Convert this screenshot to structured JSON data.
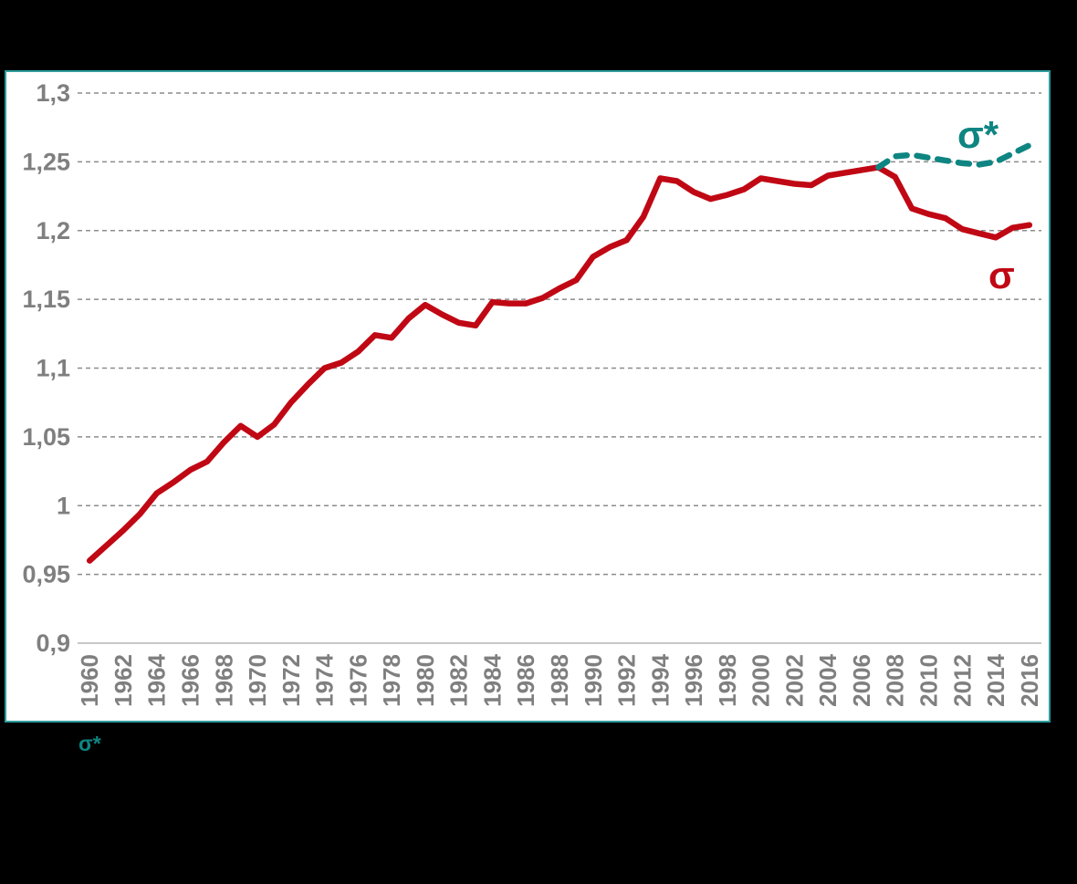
{
  "panel": {
    "background": "#ffffff",
    "border_color": "#2e9d9c"
  },
  "footnote": {
    "text": "σ*",
    "color": "#0f8582"
  },
  "colors": {
    "sigma_line": "#c00814",
    "sigma_star_line": "#0f8582",
    "tick_label_gray": "#7f7f7f",
    "gridline_gray": "#8c8c8c",
    "baseline_gray": "#bfbfbf"
  },
  "chart_data": {
    "type": "line",
    "title": "",
    "xlabel": "",
    "ylabel": "",
    "grid": "horizontal dashed gridlines, solid baseline at 0.9",
    "legend": "inline series labels at line ends",
    "ylim": [
      0.9,
      1.3
    ],
    "yticks": [
      {
        "value": 1.3,
        "label": "1,3"
      },
      {
        "value": 1.25,
        "label": "1,25"
      },
      {
        "value": 1.2,
        "label": "1,2"
      },
      {
        "value": 1.15,
        "label": "1,15"
      },
      {
        "value": 1.1,
        "label": "1,1"
      },
      {
        "value": 1.05,
        "label": "1,05"
      },
      {
        "value": 1.0,
        "label": "1"
      },
      {
        "value": 0.95,
        "label": "0,95"
      },
      {
        "value": 0.9,
        "label": "0,9"
      }
    ],
    "x": [
      1960,
      1961,
      1962,
      1963,
      1964,
      1965,
      1966,
      1967,
      1968,
      1969,
      1970,
      1971,
      1972,
      1973,
      1974,
      1975,
      1976,
      1977,
      1978,
      1979,
      1980,
      1981,
      1982,
      1983,
      1984,
      1985,
      1986,
      1987,
      1988,
      1989,
      1990,
      1991,
      1992,
      1993,
      1994,
      1995,
      1996,
      1997,
      1998,
      1999,
      2000,
      2001,
      2002,
      2003,
      2004,
      2005,
      2006,
      2007,
      2008,
      2009,
      2010,
      2011,
      2012,
      2013,
      2014,
      2015,
      2016
    ],
    "xticks": [
      1960,
      1962,
      1964,
      1966,
      1968,
      1970,
      1972,
      1974,
      1976,
      1978,
      1980,
      1982,
      1984,
      1986,
      1988,
      1990,
      1992,
      1994,
      1996,
      1998,
      2000,
      2002,
      2004,
      2006,
      2008,
      2010,
      2012,
      2014,
      2016
    ],
    "series": [
      {
        "name": "σ",
        "style": "solid",
        "color": "#c00814",
        "start_year": 1960,
        "values": [
          0.96,
          0.971,
          0.982,
          0.994,
          1.009,
          1.017,
          1.026,
          1.032,
          1.046,
          1.058,
          1.05,
          1.059,
          1.075,
          1.088,
          1.1,
          1.104,
          1.112,
          1.124,
          1.122,
          1.136,
          1.146,
          1.139,
          1.133,
          1.131,
          1.148,
          1.147,
          1.147,
          1.151,
          1.158,
          1.164,
          1.181,
          1.188,
          1.193,
          1.21,
          1.238,
          1.236,
          1.228,
          1.223,
          1.226,
          1.23,
          1.238,
          1.236,
          1.234,
          1.233,
          1.24,
          1.242,
          1.244,
          1.246,
          1.239,
          1.216,
          1.212,
          1.209,
          1.201,
          1.198,
          1.195,
          1.202,
          1.204
        ]
      },
      {
        "name": "σ*",
        "style": "dashed",
        "color": "#0f8582",
        "start_year": 2007,
        "values": [
          1.246,
          1.254,
          1.255,
          1.253,
          1.251,
          1.249,
          1.248,
          1.25,
          1.256,
          1.262
        ]
      }
    ]
  }
}
